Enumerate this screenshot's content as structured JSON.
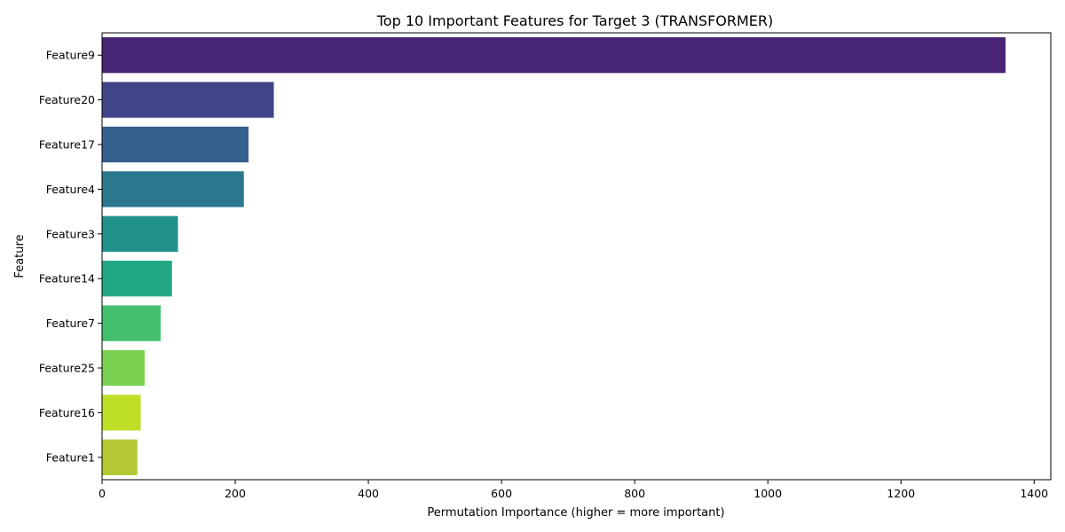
{
  "chart_data": {
    "type": "bar",
    "orientation": "horizontal",
    "title": "Top 10 Important Features for Target 3 (TRANSFORMER)",
    "xlabel": "Permutation Importance (higher = more important)",
    "ylabel": "Feature",
    "categories": [
      "Feature9",
      "Feature20",
      "Feature17",
      "Feature4",
      "Feature3",
      "Feature14",
      "Feature7",
      "Feature25",
      "Feature16",
      "Feature1"
    ],
    "values": [
      1357,
      258,
      220,
      213,
      114,
      105,
      88,
      64,
      58,
      53
    ],
    "colors": [
      "#482475",
      "#414487",
      "#355f8d",
      "#2a788e",
      "#21918c",
      "#22a884",
      "#44bf70",
      "#7ad151",
      "#bddf26",
      "#b3c834"
    ],
    "xlim": [
      0,
      1425
    ],
    "xticks": [
      0,
      200,
      400,
      600,
      800,
      1000,
      1200,
      1400
    ],
    "grid": false,
    "legend": "none"
  }
}
